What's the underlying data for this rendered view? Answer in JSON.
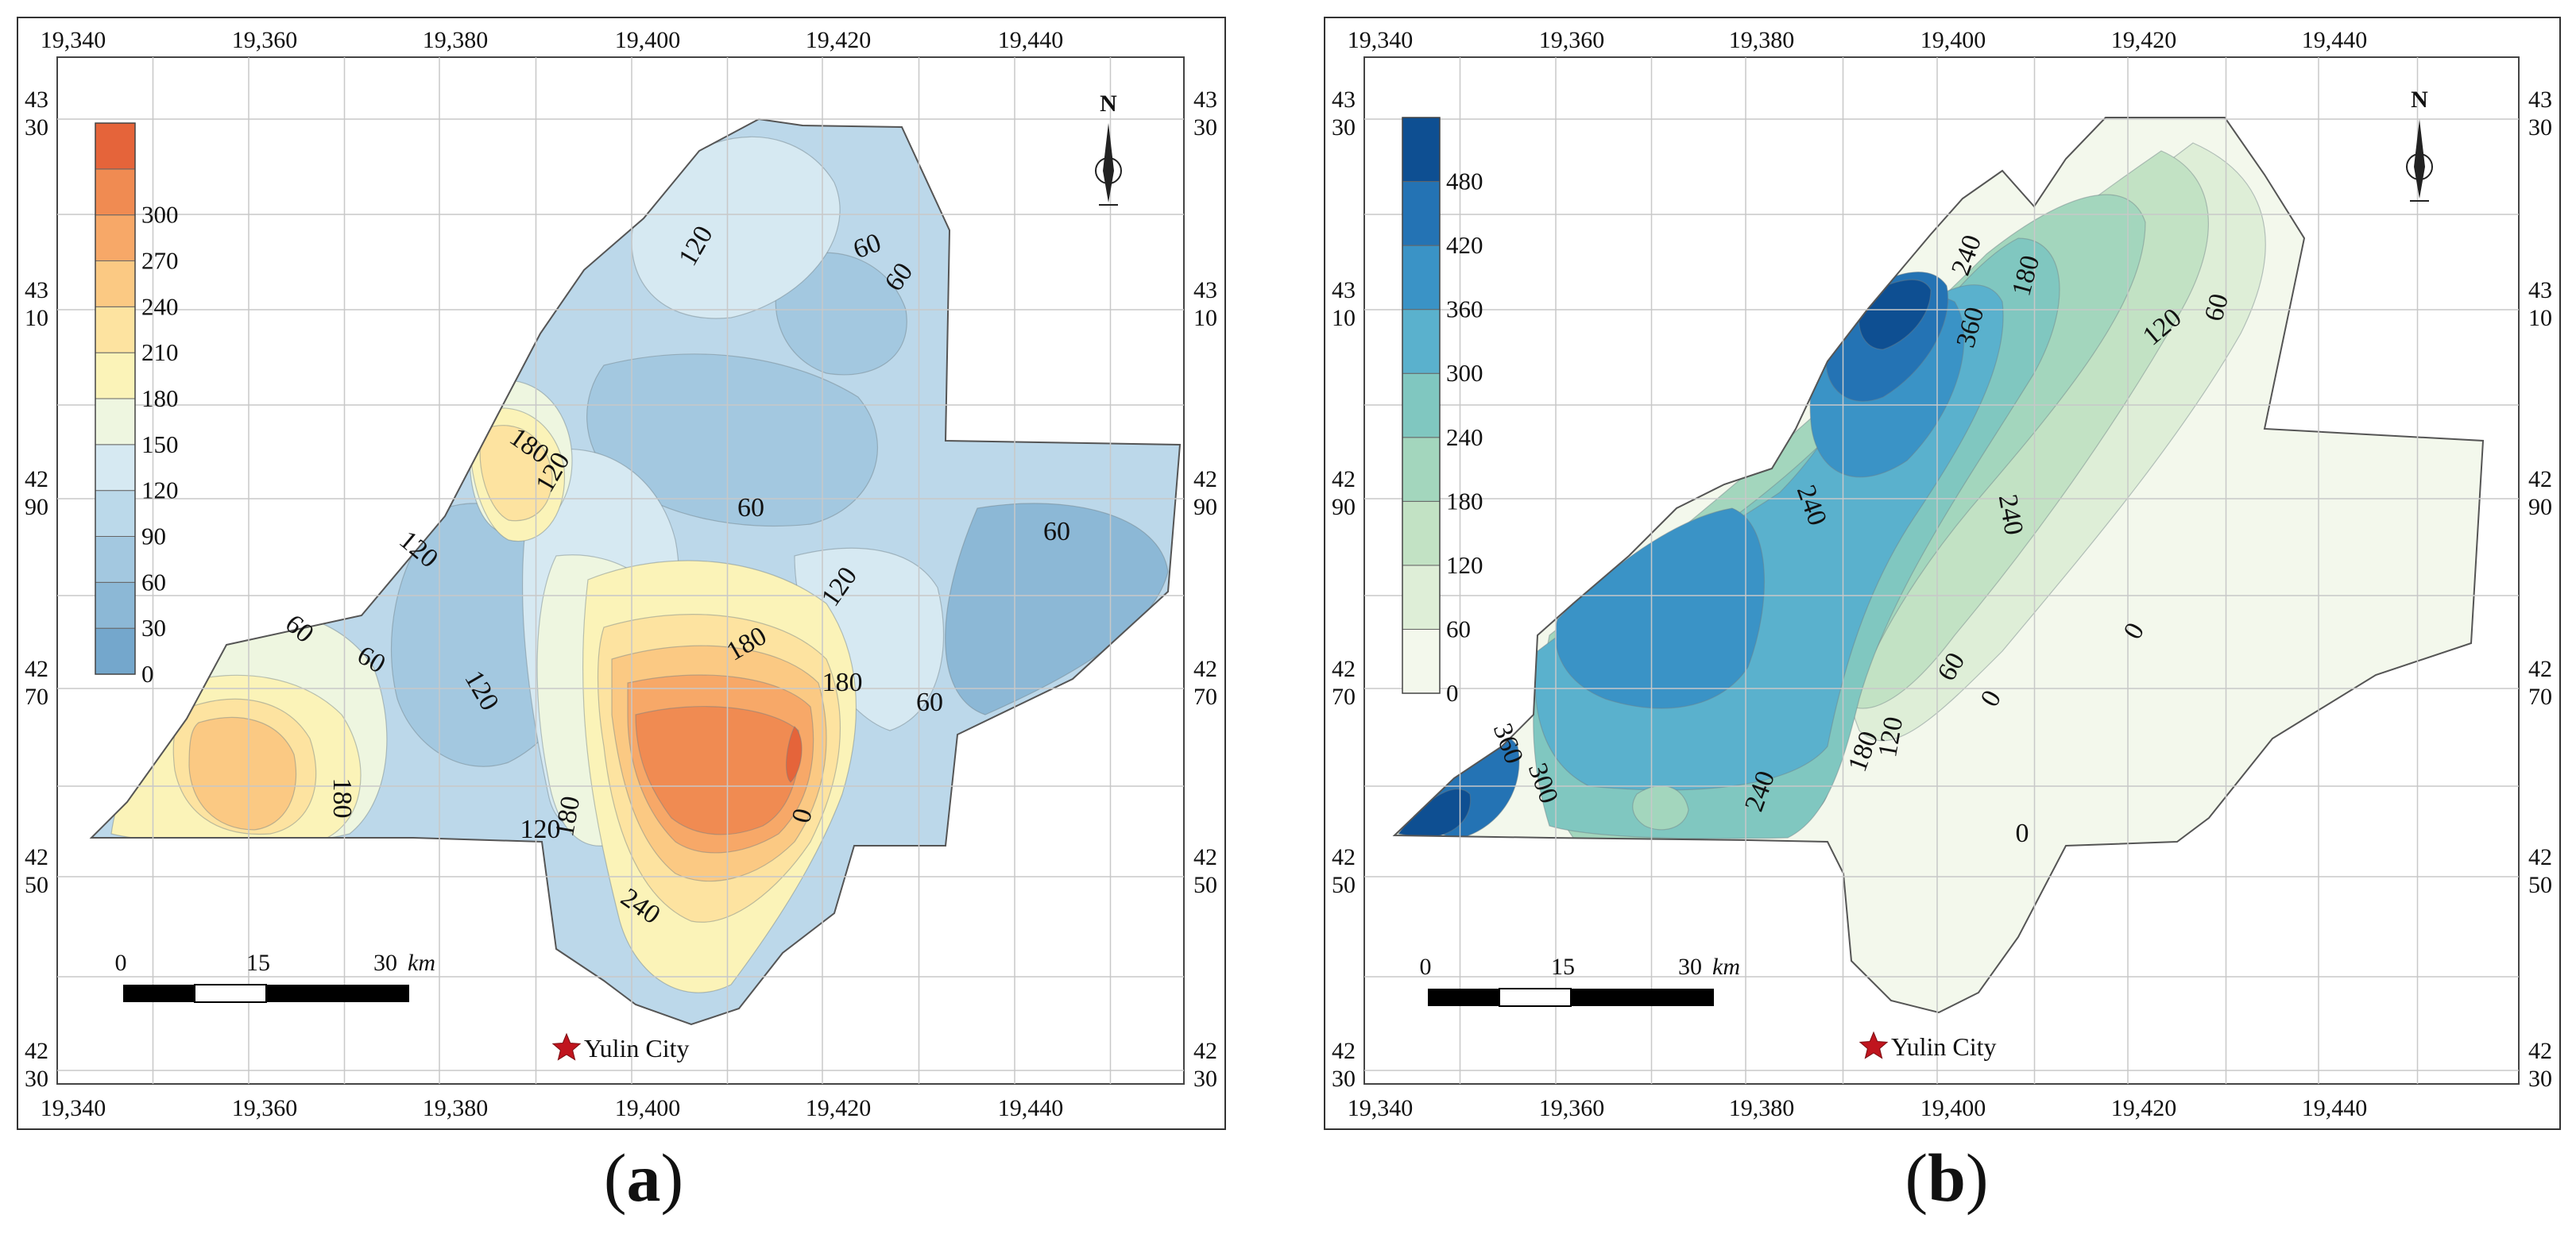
{
  "panels": [
    {
      "caption": "(a)",
      "caption_letter": "a",
      "palette": "warm",
      "x_ticks": [
        "19,340",
        "19,360",
        "19,380",
        "19,400",
        "19,420",
        "19,440"
      ],
      "y_ticks": [
        [
          "43",
          "30"
        ],
        [
          "43",
          "10"
        ],
        [
          "42",
          "90"
        ],
        [
          "42",
          "70"
        ],
        [
          "42",
          "50"
        ],
        [
          "42",
          "30"
        ]
      ],
      "legend": {
        "values": [
          "0",
          "30",
          "60",
          "90",
          "120",
          "150",
          "180",
          "210",
          "240",
          "270",
          "300"
        ],
        "colors": [
          "#74a7cc",
          "#8cb8d6",
          "#a3c8e0",
          "#bbd9ea",
          "#d6e9f2",
          "#eef6e0",
          "#fbf3b8",
          "#fde3a0",
          "#fbc983",
          "#f7a868",
          "#f08b52",
          "#e5643a"
        ]
      },
      "contour_labels": [
        "120",
        "60",
        "60",
        "180",
        "120",
        "60",
        "120",
        "120",
        "60",
        "60",
        "60",
        "180",
        "120",
        "60",
        "180",
        "0",
        "180",
        "120",
        "240",
        "180"
      ],
      "scale": {
        "ticks": [
          "0",
          "15",
          "30"
        ],
        "unit": "km"
      },
      "north": "N",
      "city": "Yulin City"
    },
    {
      "caption": "(b)",
      "caption_letter": "b",
      "palette": "cool",
      "x_ticks": [
        "19,340",
        "19,360",
        "19,380",
        "19,400",
        "19,420",
        "19,440"
      ],
      "y_ticks": [
        [
          "43",
          "30"
        ],
        [
          "43",
          "10"
        ],
        [
          "42",
          "90"
        ],
        [
          "42",
          "70"
        ],
        [
          "42",
          "50"
        ],
        [
          "42",
          "30"
        ]
      ],
      "legend": {
        "values": [
          "0",
          "60",
          "120",
          "180",
          "240",
          "300",
          "360",
          "420",
          "480"
        ],
        "colors": [
          "#f3f8ec",
          "#deeed7",
          "#c2e2c4",
          "#a3d6bd",
          "#80c7c0",
          "#5ab1cd",
          "#3a93c6",
          "#2473b4",
          "#0e4f92"
        ]
      },
      "contour_labels": [
        "240",
        "180",
        "360",
        "120",
        "60",
        "240",
        "240",
        "360",
        "300",
        "240",
        "180",
        "120",
        "60",
        "0",
        "0",
        "0"
      ],
      "scale": {
        "ticks": [
          "0",
          "15",
          "30"
        ],
        "unit": "km"
      },
      "north": "N",
      "city": "Yulin City"
    }
  ]
}
